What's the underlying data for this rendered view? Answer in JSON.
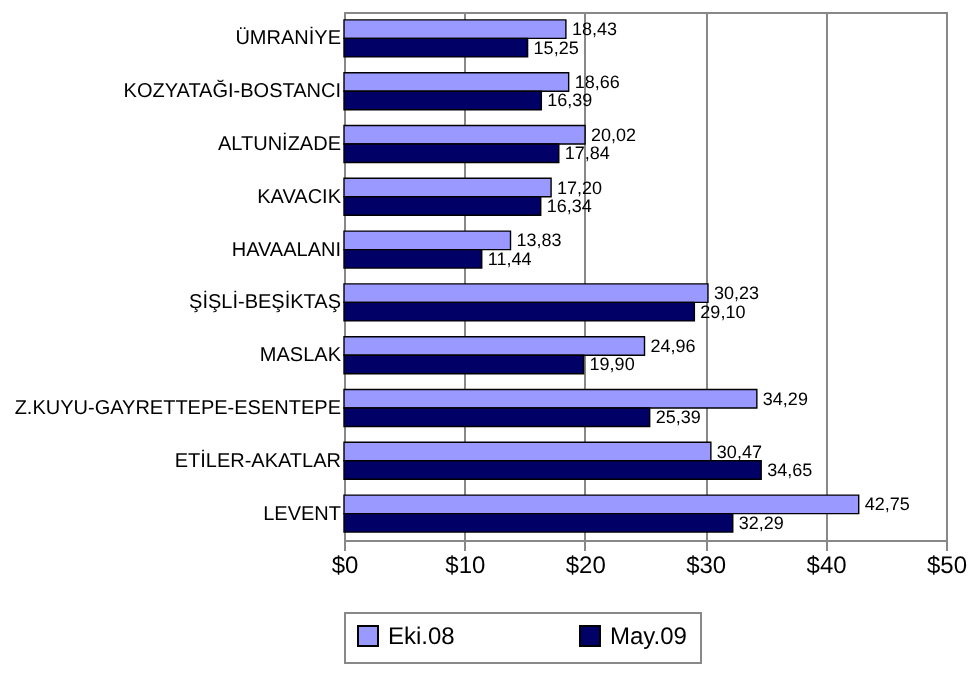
{
  "chart_data": {
    "type": "bar",
    "orientation": "horizontal",
    "categories": [
      "ÜMRANİYE",
      "KOZYATAĞI-BOSTANCI",
      "ALTUNİZADE",
      "KAVACIK",
      "HAVAALANI",
      "ŞİŞLİ-BEŞİKTAŞ",
      "MASLAK",
      "Z.KUYU-GAYRETTEPE-ESENTEPE",
      "ETİLER-AKATLAR",
      "LEVENT"
    ],
    "series": [
      {
        "name": "Eki.08",
        "color": "#9999ff",
        "values": [
          18.43,
          18.66,
          20.02,
          17.2,
          13.83,
          30.23,
          24.96,
          34.29,
          30.47,
          42.75
        ],
        "value_labels": [
          "18,43",
          "18,66",
          "20,02",
          "17,20",
          "13,83",
          "30,23",
          "24,96",
          "34,29",
          "30,47",
          "42,75"
        ]
      },
      {
        "name": "May.09",
        "color": "#000066",
        "values": [
          15.25,
          16.39,
          17.84,
          16.34,
          11.44,
          29.1,
          19.9,
          25.39,
          34.65,
          32.29
        ],
        "value_labels": [
          "15,25",
          "16,39",
          "17,84",
          "16,34",
          "11,44",
          "29,10",
          "19,90",
          "25,39",
          "34,65",
          "32,29"
        ]
      }
    ],
    "xlim": [
      0,
      50
    ],
    "xticks": [
      {
        "value": 0,
        "label": "$0"
      },
      {
        "value": 10,
        "label": "$10"
      },
      {
        "value": 20,
        "label": "$20"
      },
      {
        "value": 30,
        "label": "$30"
      },
      {
        "value": 40,
        "label": "$40"
      },
      {
        "value": 50,
        "label": "$50"
      }
    ],
    "grid": "x",
    "legend": "bottom"
  }
}
